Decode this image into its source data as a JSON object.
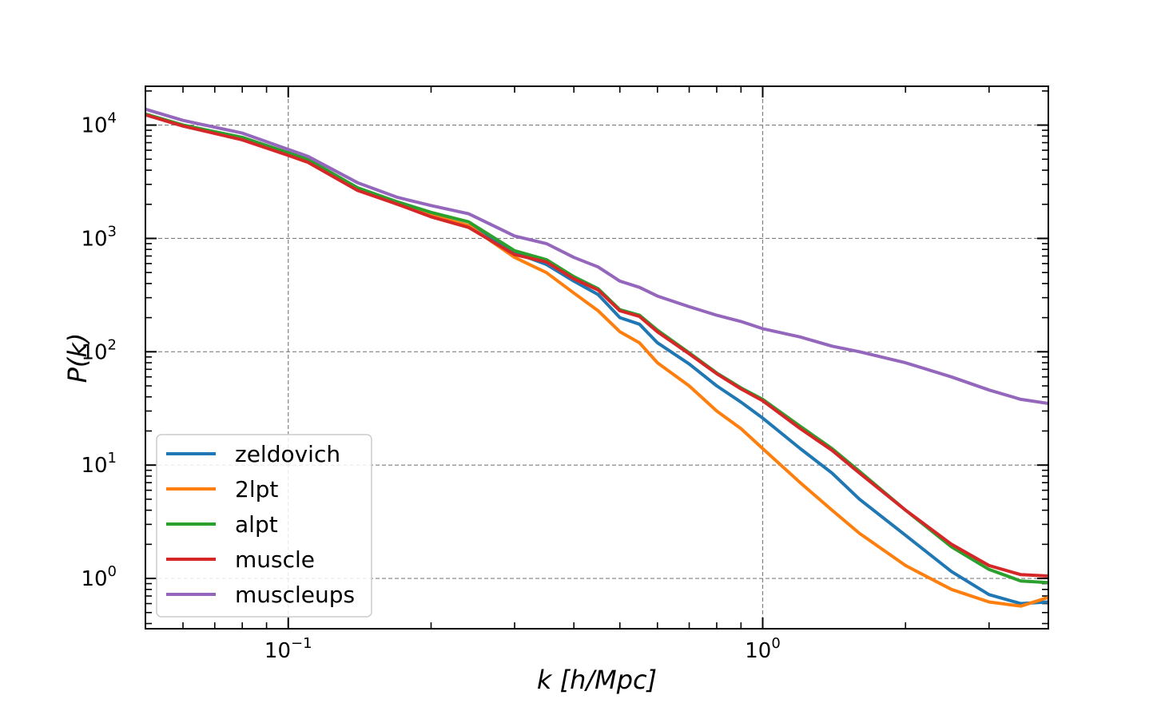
{
  "chart_data": {
    "type": "line",
    "xlabel": "k [h/Mpc]",
    "ylabel": "P(k)",
    "xscale": "log",
    "yscale": "log",
    "xlim": [
      0.05,
      4.0
    ],
    "ylim": [
      0.36,
      22000
    ],
    "grid": true,
    "legend_position": "lower-left",
    "x_tick_labels": [
      "10^-1",
      "10^0"
    ],
    "y_tick_labels": [
      "10^0",
      "10^1",
      "10^2",
      "10^3",
      "10^4"
    ],
    "series": [
      {
        "name": "zeldovich",
        "color": "#1f77b4",
        "points": [
          [
            0.05,
            12500
          ],
          [
            0.06,
            10000
          ],
          [
            0.08,
            7600
          ],
          [
            0.1,
            5500
          ],
          [
            0.11,
            4800
          ],
          [
            0.14,
            2700
          ],
          [
            0.17,
            2000
          ],
          [
            0.2,
            1600
          ],
          [
            0.24,
            1300
          ],
          [
            0.3,
            750
          ],
          [
            0.35,
            590
          ],
          [
            0.4,
            420
          ],
          [
            0.45,
            320
          ],
          [
            0.5,
            200
          ],
          [
            0.55,
            175
          ],
          [
            0.6,
            120
          ],
          [
            0.7,
            78
          ],
          [
            0.8,
            50
          ],
          [
            0.9,
            36
          ],
          [
            1.0,
            26
          ],
          [
            1.2,
            14
          ],
          [
            1.4,
            8.5
          ],
          [
            1.6,
            5.0
          ],
          [
            2.0,
            2.4
          ],
          [
            2.5,
            1.15
          ],
          [
            3.0,
            0.72
          ],
          [
            3.5,
            0.6
          ],
          [
            4.0,
            0.62
          ]
        ]
      },
      {
        "name": "2lpt",
        "color": "#ff7f0e",
        "points": [
          [
            0.05,
            12500
          ],
          [
            0.06,
            10000
          ],
          [
            0.08,
            7600
          ],
          [
            0.1,
            5500
          ],
          [
            0.11,
            4800
          ],
          [
            0.14,
            2700
          ],
          [
            0.17,
            2000
          ],
          [
            0.2,
            1600
          ],
          [
            0.24,
            1300
          ],
          [
            0.3,
            680
          ],
          [
            0.35,
            500
          ],
          [
            0.4,
            330
          ],
          [
            0.45,
            230
          ],
          [
            0.5,
            150
          ],
          [
            0.55,
            120
          ],
          [
            0.6,
            80
          ],
          [
            0.7,
            50
          ],
          [
            0.8,
            30
          ],
          [
            0.9,
            21
          ],
          [
            1.0,
            14
          ],
          [
            1.2,
            7.0
          ],
          [
            1.4,
            4.0
          ],
          [
            1.6,
            2.5
          ],
          [
            2.0,
            1.3
          ],
          [
            2.5,
            0.8
          ],
          [
            3.0,
            0.62
          ],
          [
            3.5,
            0.57
          ],
          [
            4.0,
            0.68
          ]
        ]
      },
      {
        "name": "alpt",
        "color": "#2ca02c",
        "points": [
          [
            0.05,
            12500
          ],
          [
            0.06,
            10000
          ],
          [
            0.08,
            7800
          ],
          [
            0.1,
            5700
          ],
          [
            0.11,
            5000
          ],
          [
            0.14,
            2800
          ],
          [
            0.17,
            2100
          ],
          [
            0.2,
            1700
          ],
          [
            0.24,
            1400
          ],
          [
            0.3,
            780
          ],
          [
            0.35,
            650
          ],
          [
            0.4,
            460
          ],
          [
            0.45,
            360
          ],
          [
            0.5,
            235
          ],
          [
            0.55,
            210
          ],
          [
            0.6,
            155
          ],
          [
            0.7,
            98
          ],
          [
            0.8,
            65
          ],
          [
            0.9,
            48
          ],
          [
            1.0,
            38
          ],
          [
            1.2,
            22
          ],
          [
            1.4,
            14
          ],
          [
            1.6,
            8.8
          ],
          [
            2.0,
            4.0
          ],
          [
            2.5,
            1.9
          ],
          [
            3.0,
            1.2
          ],
          [
            3.5,
            0.95
          ],
          [
            4.0,
            0.92
          ]
        ]
      },
      {
        "name": "muscle",
        "color": "#d62728",
        "points": [
          [
            0.05,
            12300
          ],
          [
            0.06,
            9800
          ],
          [
            0.08,
            7400
          ],
          [
            0.1,
            5400
          ],
          [
            0.11,
            4700
          ],
          [
            0.14,
            2650
          ],
          [
            0.17,
            2000
          ],
          [
            0.2,
            1550
          ],
          [
            0.24,
            1250
          ],
          [
            0.3,
            720
          ],
          [
            0.35,
            620
          ],
          [
            0.4,
            440
          ],
          [
            0.45,
            350
          ],
          [
            0.5,
            230
          ],
          [
            0.55,
            205
          ],
          [
            0.6,
            150
          ],
          [
            0.7,
            96
          ],
          [
            0.8,
            64
          ],
          [
            0.9,
            47
          ],
          [
            1.0,
            37
          ],
          [
            1.2,
            21
          ],
          [
            1.4,
            13.5
          ],
          [
            1.6,
            8.5
          ],
          [
            2.0,
            4.0
          ],
          [
            2.5,
            2.0
          ],
          [
            3.0,
            1.3
          ],
          [
            3.5,
            1.08
          ],
          [
            4.0,
            1.05
          ]
        ]
      },
      {
        "name": "muscleups",
        "color": "#9467bd",
        "points": [
          [
            0.05,
            13800
          ],
          [
            0.06,
            11000
          ],
          [
            0.08,
            8500
          ],
          [
            0.1,
            6100
          ],
          [
            0.11,
            5300
          ],
          [
            0.14,
            3100
          ],
          [
            0.17,
            2300
          ],
          [
            0.2,
            1950
          ],
          [
            0.24,
            1650
          ],
          [
            0.3,
            1050
          ],
          [
            0.35,
            900
          ],
          [
            0.4,
            680
          ],
          [
            0.45,
            560
          ],
          [
            0.5,
            420
          ],
          [
            0.55,
            370
          ],
          [
            0.6,
            310
          ],
          [
            0.7,
            250
          ],
          [
            0.8,
            210
          ],
          [
            0.9,
            185
          ],
          [
            1.0,
            160
          ],
          [
            1.2,
            135
          ],
          [
            1.4,
            112
          ],
          [
            1.6,
            100
          ],
          [
            2.0,
            80
          ],
          [
            2.5,
            60
          ],
          [
            3.0,
            46
          ],
          [
            3.5,
            38
          ],
          [
            4.0,
            35
          ]
        ]
      }
    ]
  }
}
